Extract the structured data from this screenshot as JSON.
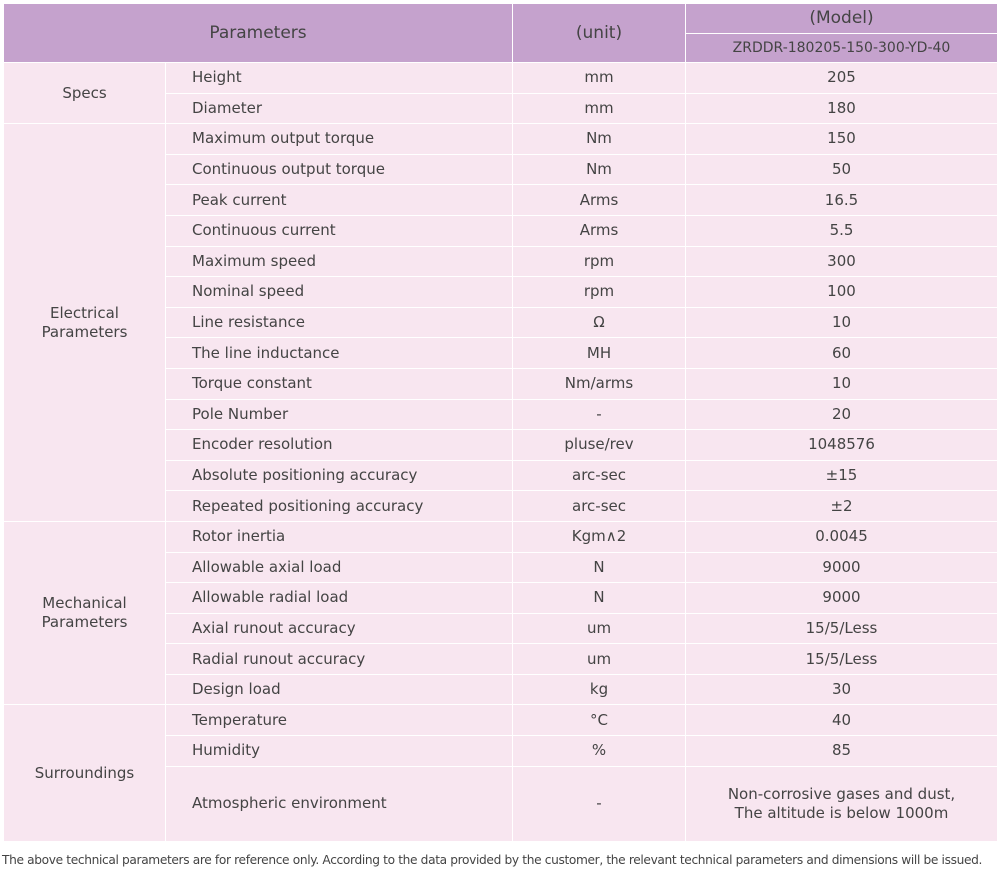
{
  "header": {
    "parameters": "Parameters",
    "unit": "(unit)",
    "model": "(Model)",
    "model_name": "ZRDDR-180205-150-300-YD-40"
  },
  "groups": [
    {
      "name": "Specs",
      "rows": [
        [
          "Height",
          "mm",
          "205"
        ],
        [
          "Diameter",
          "mm",
          "180"
        ]
      ]
    },
    {
      "name": "Electrical\nParameters",
      "rows": [
        [
          "Maximum output torque",
          "Nm",
          "150"
        ],
        [
          "Continuous output torque",
          "Nm",
          "50"
        ],
        [
          "Peak current",
          "Arms",
          "16.5"
        ],
        [
          "Continuous current",
          "Arms",
          "5.5"
        ],
        [
          "Maximum speed",
          "rpm",
          "300"
        ],
        [
          "Nominal speed",
          "rpm",
          "100"
        ],
        [
          "Line resistance",
          "Ω",
          "10"
        ],
        [
          "The line inductance",
          "MH",
          "60"
        ],
        [
          "Torque constant",
          "Nm/arms",
          "10"
        ],
        [
          "Pole Number",
          "-",
          "20"
        ],
        [
          "Encoder resolution",
          "pluse/rev",
          "1048576"
        ],
        [
          "Absolute positioning accuracy",
          "arc-sec",
          "±15"
        ],
        [
          "Repeated positioning accuracy",
          "arc-sec",
          "±2"
        ]
      ]
    },
    {
      "name": "Mechanical\nParameters",
      "rows": [
        [
          "Rotor inertia",
          "Kgm∧2",
          "0.0045"
        ],
        [
          "Allowable axial load",
          "N",
          "9000"
        ],
        [
          "Allowable radial load",
          "N",
          "9000"
        ],
        [
          "Axial runout accuracy",
          "um",
          "15/5/Less"
        ],
        [
          "Radial runout accuracy",
          "um",
          "15/5/Less"
        ],
        [
          "Design load",
          "kg",
          "30"
        ]
      ]
    },
    {
      "name": "Surroundings",
      "rows": [
        [
          "Temperature",
          "°C",
          "40"
        ],
        [
          "Humidity",
          "%",
          "85"
        ],
        [
          "Atmospheric environment",
          "-",
          "Non-corrosive gases and dust,\nThe altitude is below 1000m"
        ]
      ]
    }
  ],
  "footer": "The above technical parameters are for reference only. According to the data provided by the customer, the relevant technical parameters and dimensions will be issued."
}
